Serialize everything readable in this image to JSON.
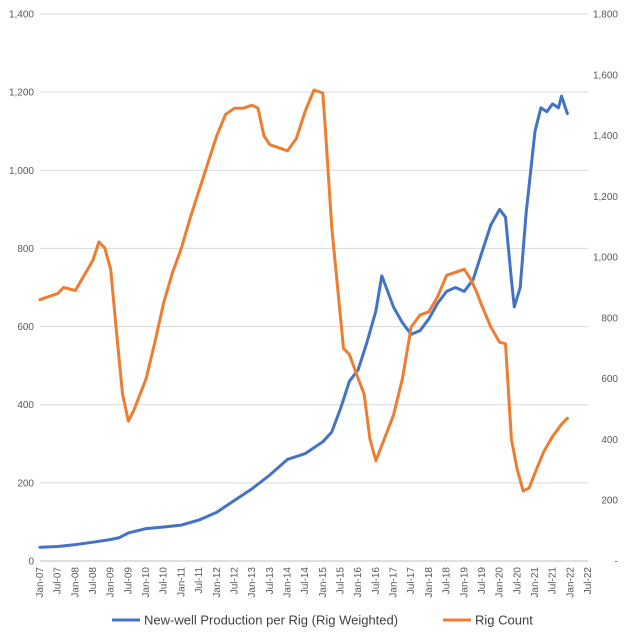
{
  "chart_data": {
    "type": "line",
    "title": "",
    "xlabel": "",
    "ylabel": "",
    "y_left_lim": [
      0,
      1400
    ],
    "y_left_ticks": [
      "0",
      "200",
      "400",
      "600",
      "800",
      "1,000",
      "1,200",
      "1,400"
    ],
    "y_right_lim": [
      0,
      1800
    ],
    "y_right_ticks": [
      "-",
      "200",
      "400",
      "600",
      "800",
      "1,000",
      "1,200",
      "1,400",
      "1,600",
      "1,800"
    ],
    "x_ticks": [
      "Jan-07",
      "Jul-07",
      "Jan-08",
      "Jul-08",
      "Jan-09",
      "Jul-09",
      "Jan-10",
      "Jul-10",
      "Jan-11",
      "Jul-11",
      "Jan-12",
      "Jul-12",
      "Jan-13",
      "Jul-13",
      "Jan-14",
      "Jul-14",
      "Jan-15",
      "Jul-15",
      "Jan-16",
      "Jul-16",
      "Jan-17",
      "Jul-17",
      "Jan-18",
      "Jul-18",
      "Jan-19",
      "Jul-19",
      "Jan-20",
      "Jul-20",
      "Jan-21",
      "Jul-21",
      "Jan-22",
      "Jul-22"
    ],
    "grid": "horizontal",
    "legend_position": "bottom",
    "series": [
      {
        "name": "New-well Production per Rig (Rig Weighted)",
        "axis": "left",
        "color": "#4472C4",
        "points": [
          [
            "2007-01",
            35
          ],
          [
            "2007-07",
            37
          ],
          [
            "2008-01",
            42
          ],
          [
            "2008-07",
            48
          ],
          [
            "2009-01",
            55
          ],
          [
            "2009-04",
            60
          ],
          [
            "2009-07",
            72
          ],
          [
            "2010-01",
            83
          ],
          [
            "2010-07",
            87
          ],
          [
            "2011-01",
            92
          ],
          [
            "2011-07",
            105
          ],
          [
            "2012-01",
            125
          ],
          [
            "2012-07",
            155
          ],
          [
            "2013-01",
            185
          ],
          [
            "2013-07",
            220
          ],
          [
            "2014-01",
            260
          ],
          [
            "2014-07",
            275
          ],
          [
            "2015-01",
            305
          ],
          [
            "2015-04",
            330
          ],
          [
            "2015-07",
            390
          ],
          [
            "2015-10",
            460
          ],
          [
            "2016-01",
            490
          ],
          [
            "2016-04",
            560
          ],
          [
            "2016-07",
            640
          ],
          [
            "2016-09",
            730
          ],
          [
            "2016-11",
            690
          ],
          [
            "2017-01",
            650
          ],
          [
            "2017-04",
            610
          ],
          [
            "2017-07",
            580
          ],
          [
            "2017-10",
            590
          ],
          [
            "2018-01",
            620
          ],
          [
            "2018-04",
            660
          ],
          [
            "2018-07",
            690
          ],
          [
            "2018-10",
            700
          ],
          [
            "2019-01",
            690
          ],
          [
            "2019-04",
            720
          ],
          [
            "2019-07",
            790
          ],
          [
            "2019-10",
            860
          ],
          [
            "2020-01",
            900
          ],
          [
            "2020-03",
            880
          ],
          [
            "2020-05",
            720
          ],
          [
            "2020-06",
            650
          ],
          [
            "2020-08",
            700
          ],
          [
            "2020-10",
            890
          ],
          [
            "2021-01",
            1100
          ],
          [
            "2021-03",
            1160
          ],
          [
            "2021-05",
            1150
          ],
          [
            "2021-07",
            1170
          ],
          [
            "2021-09",
            1160
          ],
          [
            "2021-10",
            1190
          ],
          [
            "2021-12",
            1145
          ]
        ]
      },
      {
        "name": "Rig Count",
        "axis": "right",
        "color": "#ED7D31",
        "points": [
          [
            "2007-01",
            860
          ],
          [
            "2007-04",
            870
          ],
          [
            "2007-07",
            880
          ],
          [
            "2007-09",
            900
          ],
          [
            "2008-01",
            890
          ],
          [
            "2008-04",
            940
          ],
          [
            "2008-07",
            990
          ],
          [
            "2008-09",
            1050
          ],
          [
            "2008-11",
            1030
          ],
          [
            "2009-01",
            960
          ],
          [
            "2009-03",
            750
          ],
          [
            "2009-05",
            550
          ],
          [
            "2009-07",
            460
          ],
          [
            "2009-09",
            500
          ],
          [
            "2010-01",
            600
          ],
          [
            "2010-04",
            720
          ],
          [
            "2010-07",
            850
          ],
          [
            "2010-10,",
            950
          ],
          [
            "2011-01",
            1030
          ],
          [
            "2011-04",
            1130
          ],
          [
            "2011-07",
            1220
          ],
          [
            "2011-10",
            1310
          ],
          [
            "2012-01",
            1400
          ],
          [
            "2012-04",
            1470
          ],
          [
            "2012-07",
            1490
          ],
          [
            "2012-10",
            1490
          ],
          [
            "2013-01",
            1500
          ],
          [
            "2013-03",
            1490
          ],
          [
            "2013-05",
            1400
          ],
          [
            "2013-07",
            1370
          ],
          [
            "2013-10",
            1360
          ],
          [
            "2014-01",
            1350
          ],
          [
            "2014-04",
            1390
          ],
          [
            "2014-07",
            1480
          ],
          [
            "2014-10",
            1550
          ],
          [
            "2015-01",
            1540
          ],
          [
            "2015-02",
            1400
          ],
          [
            "2015-04",
            1100
          ],
          [
            "2015-06",
            900
          ],
          [
            "2015-08",
            700
          ],
          [
            "2015-10",
            680
          ],
          [
            "2016-01",
            600
          ],
          [
            "2016-03",
            550
          ],
          [
            "2016-05",
            400
          ],
          [
            "2016-07",
            330
          ],
          [
            "2016-09",
            380
          ],
          [
            "2017-01",
            480
          ],
          [
            "2017-04",
            600
          ],
          [
            "2017-07",
            770
          ],
          [
            "2017-10",
            810
          ],
          [
            "2018-01",
            820
          ],
          [
            "2018-04",
            870
          ],
          [
            "2018-07",
            940
          ],
          [
            "2018-10",
            950
          ],
          [
            "2019-01",
            960
          ],
          [
            "2019-03",
            930
          ],
          [
            "2019-05",
            890
          ],
          [
            "2019-07",
            840
          ],
          [
            "2019-10",
            770
          ],
          [
            "2020-01",
            720
          ],
          [
            "2020-03",
            715
          ],
          [
            "2020-05",
            400
          ],
          [
            "2020-07",
            300
          ],
          [
            "2020-09",
            230
          ],
          [
            "2020-11",
            240
          ],
          [
            "2021-01",
            290
          ],
          [
            "2021-04",
            360
          ],
          [
            "2021-07",
            410
          ],
          [
            "2021-10",
            450
          ],
          [
            "2021-12",
            470
          ]
        ]
      }
    ]
  }
}
